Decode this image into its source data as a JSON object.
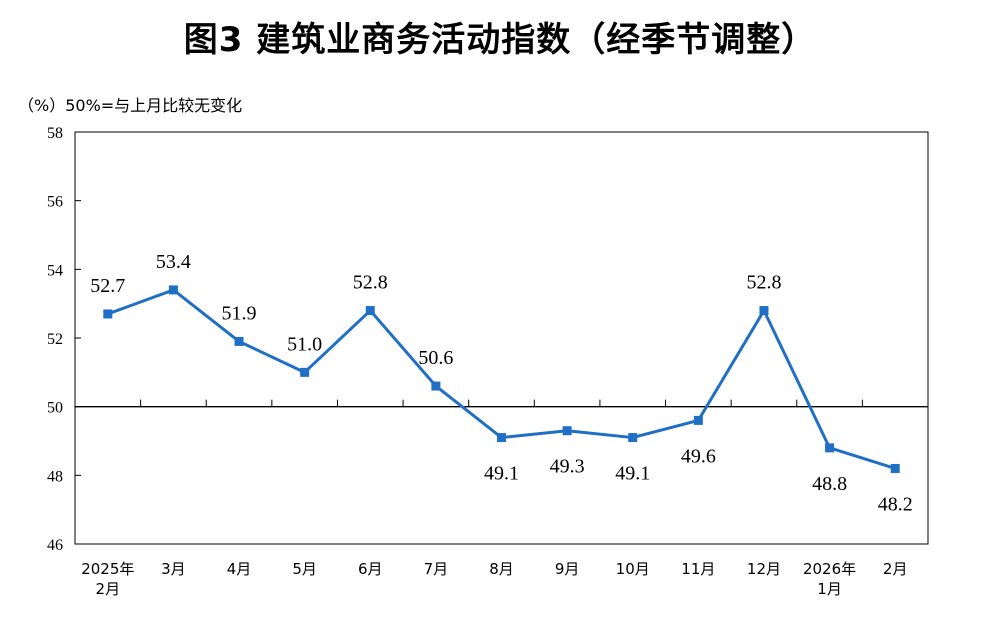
{
  "title": "图3  建筑业商务活动指数（经季节调整）",
  "unit_label": "（%）50%=与上月比较无变化",
  "colors": {
    "series": "#1F6FC6",
    "frame": "#000000",
    "baseline": "#000000"
  },
  "chart_data": {
    "type": "line",
    "title": "图3  建筑业商务活动指数（经季节调整）",
    "ylabel": "（%）50%=与上月比较无变化",
    "ylim": [
      46,
      58
    ],
    "yticks": [
      46,
      48,
      50,
      52,
      54,
      56,
      58
    ],
    "reference_line": 50,
    "grid": false,
    "categories": [
      [
        "2025年",
        "2月"
      ],
      [
        "3月"
      ],
      [
        "4月"
      ],
      [
        "5月"
      ],
      [
        "6月"
      ],
      [
        "7月"
      ],
      [
        "8月"
      ],
      [
        "9月"
      ],
      [
        "10月"
      ],
      [
        "11月"
      ],
      [
        "12月"
      ],
      [
        "2026年",
        "1月"
      ],
      [
        "2月"
      ]
    ],
    "series": [
      {
        "values": [
          52.7,
          53.4,
          51.9,
          51.0,
          52.8,
          50.6,
          49.1,
          49.3,
          49.1,
          49.6,
          52.8,
          48.8,
          48.2
        ],
        "labels": [
          "52.7",
          "53.4",
          "51.9",
          "51.0",
          "52.8",
          "50.6",
          "49.1",
          "49.3",
          "49.1",
          "49.6",
          "52.8",
          "48.8",
          "48.2"
        ],
        "label_pos": [
          "above",
          "above",
          "above",
          "above",
          "above",
          "above",
          "below",
          "below",
          "below",
          "below",
          "above",
          "below",
          "below"
        ]
      }
    ]
  }
}
